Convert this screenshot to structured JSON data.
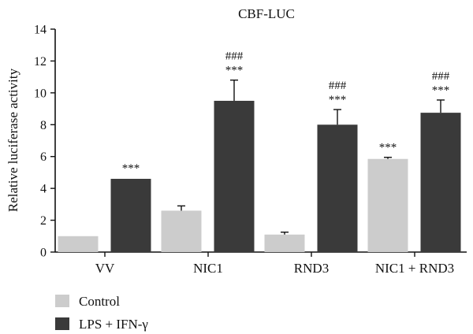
{
  "chart_data": {
    "type": "bar",
    "title": "CBF-LUC",
    "xlabel": "",
    "ylabel": "Relative luciferase activity",
    "ylim": [
      0,
      14
    ],
    "yticks": [
      "0",
      "2",
      "4",
      "6",
      "8",
      "10",
      "12",
      "14"
    ],
    "categories": [
      "VV",
      "NIC1",
      "RND3",
      "NIC1 + RND3"
    ],
    "series": [
      {
        "name": "Control",
        "color": "#cccccc",
        "values": [
          1.0,
          2.6,
          1.1,
          5.85
        ],
        "errors": [
          0.05,
          0.3,
          0.15,
          0.1
        ],
        "annotations": [
          "",
          "",
          "",
          "***"
        ]
      },
      {
        "name": "LPS + IFN-γ",
        "color": "#3a3a3a",
        "values": [
          4.6,
          9.5,
          8.0,
          8.75
        ],
        "errors": [
          0.05,
          1.3,
          0.95,
          0.8
        ],
        "annotations": [
          "***",
          "###\n***",
          "###\n***",
          "###\n***"
        ]
      }
    ],
    "legend_position": "bottom-left",
    "grid": false
  }
}
